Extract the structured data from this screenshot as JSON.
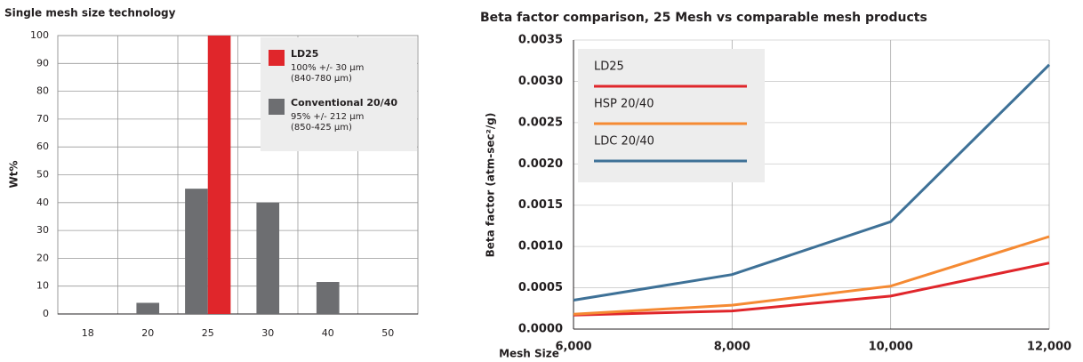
{
  "chart_data": [
    {
      "type": "bar",
      "title": "Single mesh size technology",
      "x_label": "Mesh Size",
      "y_label": "Wt%",
      "categories": [
        "18",
        "20",
        "25",
        "30",
        "40",
        "50"
      ],
      "series": [
        {
          "name": "LD25",
          "color": "#e0262b",
          "values": [
            null,
            null,
            100,
            null,
            null,
            null
          ],
          "details": [
            "100% +/- 30 µm",
            "(840-780 µm)"
          ]
        },
        {
          "name": "Conventional 20/40",
          "color": "#6d6e71",
          "values": [
            null,
            4,
            45,
            40,
            11.5,
            null
          ],
          "details": [
            "95% +/- 212 µm",
            "(850-425 µm)"
          ]
        }
      ],
      "ylim": [
        0,
        100
      ],
      "yticks": [
        0,
        10,
        20,
        30,
        40,
        50,
        60,
        70,
        80,
        90,
        100
      ],
      "grid": true
    },
    {
      "type": "line",
      "title": "Beta factor comparison, 25 Mesh vs comparable mesh products",
      "y_label": "Beta factor (atm-sec²/g)",
      "x": [
        6000,
        8000,
        10000,
        12000
      ],
      "series": [
        {
          "name": "LD25",
          "color": "#e0262b",
          "values": [
            0.00017,
            0.00022,
            0.0004,
            0.0008
          ]
        },
        {
          "name": "HSP 20/40",
          "color": "#f58a33",
          "values": [
            0.00018,
            0.00029,
            0.00052,
            0.00112
          ]
        },
        {
          "name": "LDC 20/40",
          "color": "#3e7197",
          "values": [
            0.00035,
            0.00066,
            0.0013,
            0.0032
          ]
        }
      ],
      "xlim": [
        6000,
        12000
      ],
      "xticks": [
        {
          "value": 6000,
          "label": "6,000"
        },
        {
          "value": 8000,
          "label": "8,000"
        },
        {
          "value": 10000,
          "label": "10,000"
        },
        {
          "value": 12000,
          "label": "12,000"
        }
      ],
      "ylim": [
        0,
        0.0035
      ],
      "yticks": [
        {
          "value": 0,
          "label": "0.0000"
        },
        {
          "value": 0.0005,
          "label": "0.0005"
        },
        {
          "value": 0.001,
          "label": "0.0010"
        },
        {
          "value": 0.0015,
          "label": "0.0015"
        },
        {
          "value": 0.002,
          "label": "0.0020"
        },
        {
          "value": 0.0025,
          "label": "0.0025"
        },
        {
          "value": 0.003,
          "label": "0.0030"
        },
        {
          "value": 0.0035,
          "label": "0.0035"
        }
      ],
      "grid": true
    }
  ]
}
